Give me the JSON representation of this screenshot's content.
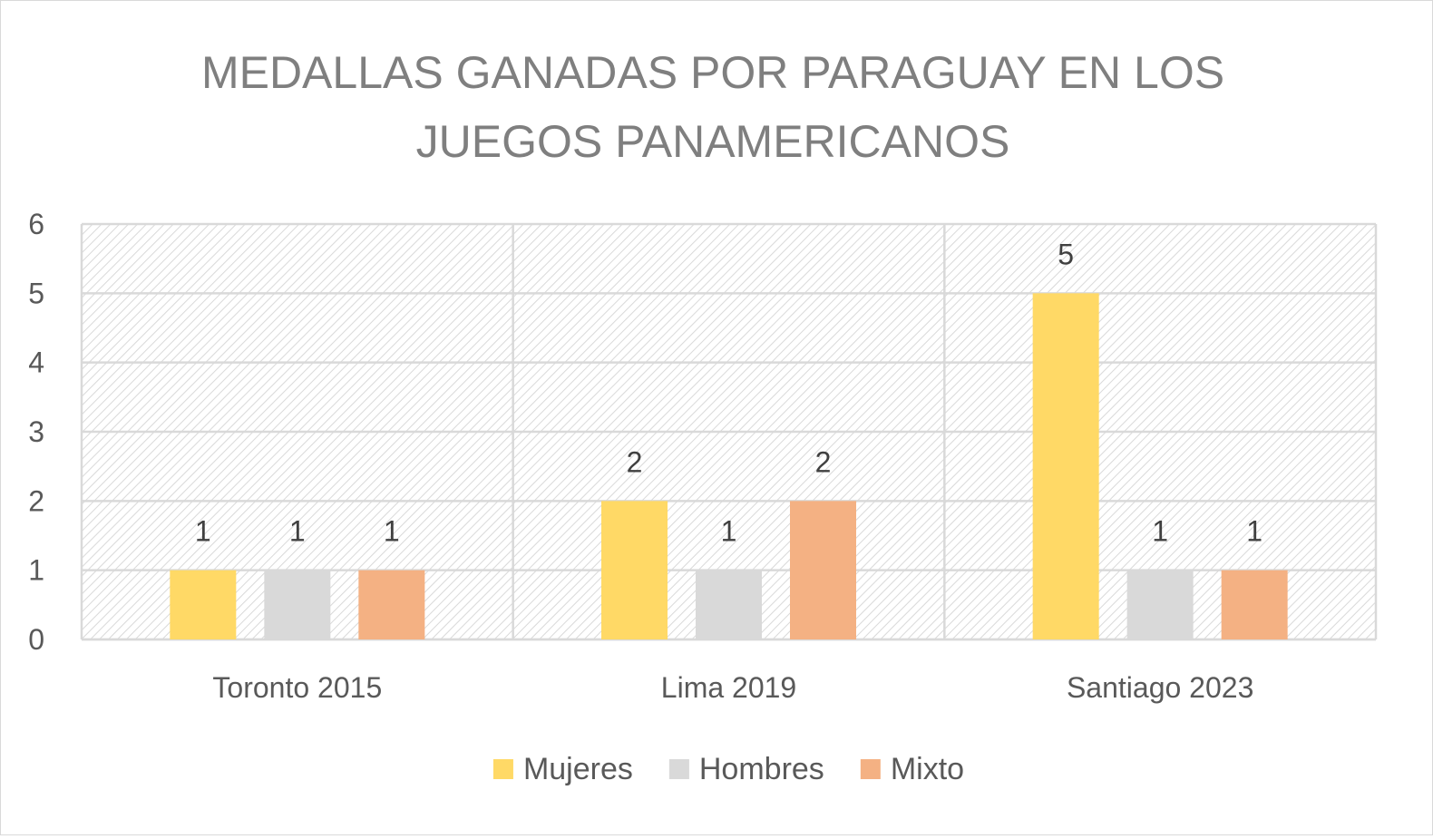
{
  "chart_data": {
    "type": "bar",
    "title_lines": [
      "MEDALLAS GANADAS POR PARAGUAY EN LOS",
      "JUEGOS PANAMERICANOS"
    ],
    "categories": [
      "Toronto 2015",
      "Lima 2019",
      "Santiago 2023"
    ],
    "series": [
      {
        "name": "Mujeres",
        "values": [
          1,
          2,
          5
        ],
        "color": "#ffd966"
      },
      {
        "name": "Hombres",
        "values": [
          1,
          1,
          1
        ],
        "color": "#d9d9d9"
      },
      {
        "name": "Mixto",
        "values": [
          1,
          2,
          1
        ],
        "color": "#f4b183"
      }
    ],
    "y_ticks": [
      "0",
      "1",
      "2",
      "3",
      "4",
      "5",
      "6"
    ],
    "ylim": [
      0,
      6
    ],
    "grid": true,
    "data_labels": true,
    "legend_position": "bottom"
  }
}
